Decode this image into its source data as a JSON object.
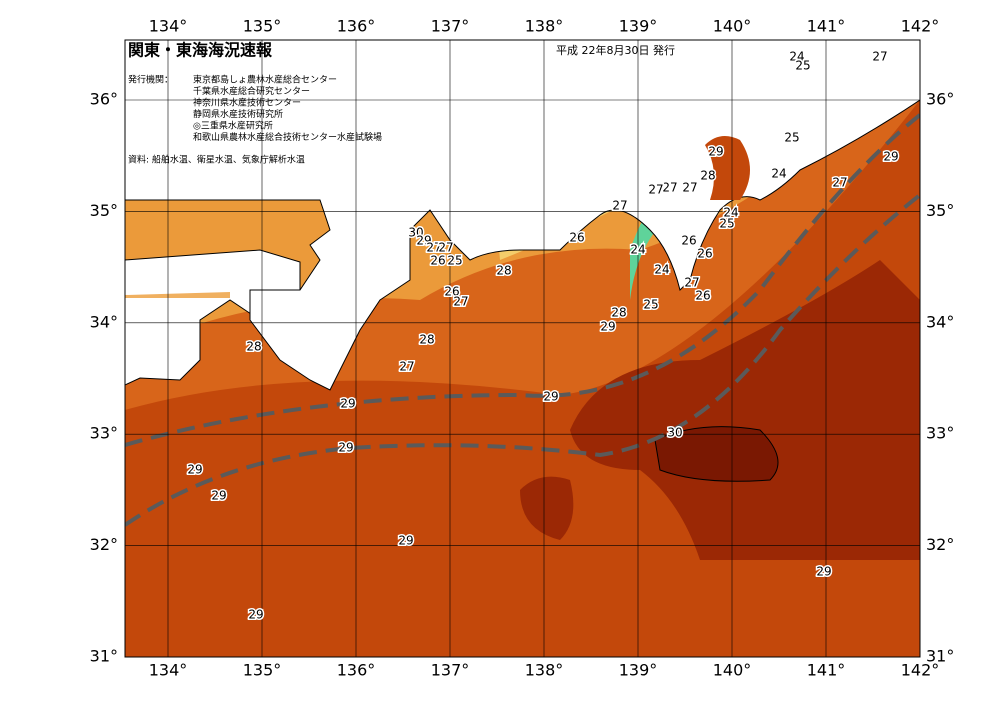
{
  "header": {
    "title": "関東・東海海況速報",
    "date": "平成 22年8月30日 発行"
  },
  "issuers": {
    "label": "発行機関：",
    "items": [
      "東京都島しょ農林水産総合センター",
      "千葉県水産総合研究センター",
      "神奈川県水産技術センター",
      "静岡県水産技術研究所",
      "◎三重県水産研究所",
      "和歌山県農林水産総合技術センター水産試験場"
    ]
  },
  "source": "資料: 船舶水温、衛星水温、気象庁解析水温",
  "map": {
    "lon_ticks": [
      "134°",
      "135°",
      "136°",
      "137°",
      "138°",
      "139°",
      "140°",
      "141°",
      "142°"
    ],
    "lat_ticks": [
      "31°",
      "32°",
      "33°",
      "34°",
      "35°",
      "36°"
    ],
    "contour_labels": [
      "27",
      "24",
      "25",
      "29",
      "25",
      "29",
      "28",
      "27",
      "24",
      "27",
      "27",
      "27",
      "27",
      "24",
      "25",
      "30",
      "29",
      "26",
      "26",
      "24",
      "27",
      "27",
      "26",
      "25",
      "26",
      "28",
      "24",
      "27",
      "26",
      "26",
      "27",
      "25",
      "28",
      "29",
      "28",
      "28",
      "27",
      "29",
      "29",
      "30",
      "29",
      "29",
      "29",
      "29",
      "29",
      "29"
    ]
  }
}
